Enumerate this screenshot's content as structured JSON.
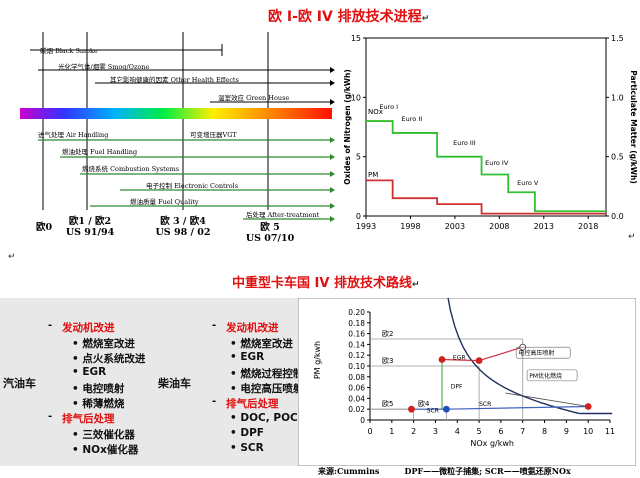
{
  "top_title": "欧 I-欧 IV 排放技术进程",
  "bottom_title": "中重型卡车国 IV 排放技术路线",
  "return_mark": "↵",
  "timeline": {
    "topics": [
      {
        "label": "碳烟 Black Smoke"
      },
      {
        "label": "光化学气体/烟雾 Smog/Ozone"
      },
      {
        "label": "其它影响健康的因素 Other Health Effects"
      },
      {
        "label": "温室效应 Green House"
      }
    ],
    "techs": [
      {
        "label": "进气处理 Air Handling"
      },
      {
        "label": "可变增压器VGT"
      },
      {
        "label": "燃油处理 Fuel Handling"
      },
      {
        "label": "燃烧系统 Combustion Systems"
      },
      {
        "label": "电子控制 Electronic Controls"
      },
      {
        "label": "燃油质量 Fuel Quality"
      },
      {
        "label": "后处理 After-treatment"
      }
    ],
    "axis": [
      {
        "line1": "欧0",
        "line2": ""
      },
      {
        "line1": "欧1 / 欧2",
        "line2": "US 91/94"
      },
      {
        "line1": "欧 3 / 欧4",
        "line2": "US 98 / 02"
      },
      {
        "line1": "欧  5",
        "line2": "US 07/10"
      }
    ]
  },
  "chart_data": [
    {
      "type": "line",
      "title": "",
      "xlabel": "",
      "ylabel": "Oxides of Nitrogen (g/kWh)",
      "y2label": "Particulate Matter (g/kWh)",
      "xlim": [
        1993,
        2020
      ],
      "ylim": [
        0,
        15
      ],
      "y2lim": [
        0,
        1.5
      ],
      "x_ticks": [
        "1993",
        "1998",
        "2003",
        "2008",
        "2013",
        "2018"
      ],
      "y_ticks": [
        "0",
        "5",
        "10",
        "15"
      ],
      "y2_ticks": [
        "0.0",
        "0.5",
        "1.0",
        "1.5"
      ],
      "axis_labels": {
        "nox": "NOx",
        "pm": "PM"
      },
      "colors": {
        "nox": "#30c030",
        "pm": "#d03030"
      },
      "series": [
        {
          "name": "NOx",
          "axis": "left",
          "x": [
            1993,
            1996,
            1996,
            2001,
            2001,
            2006,
            2006,
            2009,
            2009,
            2012,
            2012,
            2020
          ],
          "y": [
            8.0,
            8.0,
            7.0,
            7.0,
            5.0,
            5.0,
            3.5,
            3.5,
            2.0,
            2.0,
            0.4,
            0.4
          ]
        },
        {
          "name": "PM",
          "axis": "right",
          "x": [
            1993,
            1996,
            1996,
            2001,
            2001,
            2006,
            2006,
            2020
          ],
          "y": [
            0.3,
            0.3,
            0.15,
            0.15,
            0.1,
            0.1,
            0.02,
            0.02
          ]
        }
      ],
      "stage_labels": [
        {
          "text": "Euro I",
          "x": 1994.5,
          "y": 9.0
        },
        {
          "text": "Euro II",
          "x": 1997.0,
          "y": 8.0
        },
        {
          "text": "Euro III",
          "x": 2002.8,
          "y": 6.0
        },
        {
          "text": "Euro IV",
          "x": 2006.4,
          "y": 4.3
        },
        {
          "text": "Euro V",
          "x": 2010.0,
          "y": 2.6
        }
      ],
      "grid": false,
      "legend": "none"
    },
    {
      "type": "scatter",
      "title": "",
      "xlabel": "NOx    g/kwh",
      "ylabel": "PM   g/kwh",
      "xlim": [
        0,
        11
      ],
      "ylim": [
        0,
        0.2
      ],
      "x_ticks": [
        "0",
        "1",
        "2",
        "3",
        "4",
        "5",
        "6",
        "7",
        "8",
        "9",
        "10",
        "11"
      ],
      "y_ticks": [
        "0",
        "0.02",
        "0.04",
        "0.06",
        "0.08",
        "0.10",
        "0.12",
        "0.14",
        "0.16",
        "0.18",
        "0.20"
      ],
      "regions": [
        {
          "label": "欧2",
          "nox": 7.0,
          "pm": 0.15
        },
        {
          "label": "欧3",
          "nox": 5.0,
          "pm": 0.1
        },
        {
          "label": "欧4",
          "nox": 3.5,
          "pm": 0.02
        },
        {
          "label": "欧5",
          "nox": 2.0,
          "pm": 0.02
        }
      ],
      "points": [
        {
          "x": 3.3,
          "y": 0.112,
          "color": "#d02020"
        },
        {
          "x": 5.0,
          "y": 0.11,
          "color": "#d02020"
        },
        {
          "x": 1.9,
          "y": 0.02,
          "color": "#d02020"
        },
        {
          "x": 3.5,
          "y": 0.02,
          "color": "#2050c0"
        },
        {
          "x": 10.0,
          "y": 0.025,
          "color": "#d02020"
        },
        {
          "x": 7.0,
          "y": 0.135,
          "color": "#ffffff"
        }
      ],
      "annotations": [
        {
          "text": "电控高压喷射",
          "x": 6.8,
          "y": 0.12
        },
        {
          "text": "PM优化燃烧",
          "x": 7.3,
          "y": 0.078
        },
        {
          "text": "EGR",
          "x": 3.8,
          "y": 0.112
        },
        {
          "text": "DPF",
          "x": 3.7,
          "y": 0.058
        },
        {
          "text": "SCR",
          "x": 5.0,
          "y": 0.026
        },
        {
          "text": "SCR",
          "x": 2.6,
          "y": 0.014
        }
      ],
      "colors": {
        "curve": "#203060",
        "line_red": "#cc3344",
        "line_blue": "#4060c0"
      },
      "grid": false,
      "legend": "none"
    }
  ],
  "routes": {
    "gasoline_label": "汽油车",
    "diesel_label": "柴油车",
    "bullet": "-",
    "left_groups": [
      {
        "heading": "发动机改进",
        "items": [
          "燃烧室改进",
          "点火系统改进",
          "EGR",
          "电控喷射",
          "稀薄燃烧"
        ]
      },
      {
        "heading": "排气后处理",
        "items": [
          "三效催化器",
          "NOx催化器"
        ]
      }
    ],
    "right_groups": [
      {
        "heading": "发动机改进",
        "items": [
          "燃烧室改进",
          "EGR",
          "燃烧过程控制",
          "电控高压喷射"
        ]
      },
      {
        "heading": "排气后处理",
        "items": [
          "DOC, POC",
          "DPF",
          "SCR"
        ]
      }
    ]
  },
  "footnote": {
    "source": "来源:Cummins",
    "dpf": "DPF——微粒子捕集;",
    "scr": "SCR——喷氨还原NOx"
  }
}
